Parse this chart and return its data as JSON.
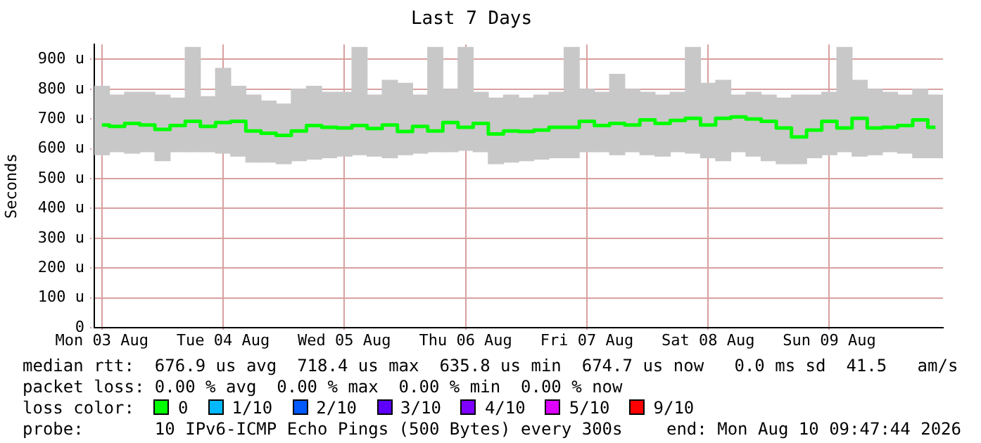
{
  "chart_data": {
    "type": "step",
    "title": "Last 7 Days",
    "ylabel": "Seconds",
    "categories": [
      "Mon 03 Aug",
      null,
      null,
      null,
      null,
      null,
      null,
      null,
      "Tue 04 Aug",
      null,
      null,
      null,
      null,
      null,
      null,
      null,
      "Wed 05 Aug",
      null,
      null,
      null,
      null,
      null,
      null,
      null,
      "Thu 06 Aug",
      null,
      null,
      null,
      null,
      null,
      null,
      null,
      "Fri 07 Aug",
      null,
      null,
      null,
      null,
      null,
      null,
      null,
      "Sat 08 Aug",
      null,
      null,
      null,
      null,
      null,
      null,
      null,
      "Sun 09 Aug",
      null,
      null,
      null,
      null,
      null,
      null,
      null
    ],
    "series": [
      {
        "type": "bar",
        "color": "#c8c8c8",
        "base": [
          580,
          590,
          585,
          590,
          560,
          590,
          590,
          590,
          585,
          575,
          555,
          555,
          550,
          560,
          565,
          570,
          575,
          580,
          575,
          570,
          580,
          585,
          590,
          590,
          595,
          590,
          550,
          555,
          560,
          565,
          570,
          570,
          590,
          590,
          580,
          590,
          580,
          575,
          590,
          585,
          570,
          560,
          590,
          575,
          560,
          550,
          550,
          570,
          580,
          590,
          575,
          580,
          590,
          585,
          570,
          570
        ],
        "values": [
          230,
          190,
          205,
          200,
          220,
          180,
          350,
          185,
          285,
          235,
          225,
          205,
          200,
          240,
          245,
          220,
          215,
          360,
          205,
          260,
          240,
          195,
          350,
          210,
          345,
          200,
          220,
          225,
          210,
          215,
          220,
          370,
          210,
          200,
          270,
          210,
          210,
          205,
          200,
          355,
          250,
          270,
          190,
          215,
          220,
          220,
          230,
          210,
          210,
          350,
          255,
          220,
          200,
          195,
          230,
          210
        ]
      },
      {
        "color": "#00ff00",
        "values": [
          680,
          675,
          685,
          680,
          665,
          678,
          692,
          675,
          688,
          692,
          660,
          652,
          645,
          660,
          678,
          672,
          670,
          678,
          668,
          680,
          658,
          675,
          660,
          688,
          672,
          685,
          650,
          660,
          658,
          663,
          672,
          672,
          692,
          678,
          685,
          680,
          697,
          685,
          695,
          702,
          680,
          702,
          707,
          700,
          692,
          670,
          640,
          663,
          692,
          670,
          702,
          670,
          672,
          678,
          697,
          672
        ]
      }
    ],
    "ylim": [
      0,
      950
    ],
    "yticks": [
      0,
      {
        "value": 100,
        "label": "100 u"
      },
      {
        "value": 200,
        "label": "200 u"
      },
      {
        "value": 300,
        "label": "300 u"
      },
      {
        "value": 400,
        "label": "400 u"
      },
      {
        "value": 500,
        "label": "500 u"
      },
      {
        "value": 600,
        "label": "600 u"
      },
      {
        "value": 700,
        "label": "700 u"
      },
      {
        "value": 800,
        "label": "800 u"
      },
      {
        "value": 900,
        "label": "900 u"
      }
    ],
    "grid": true,
    "legend": false,
    "marker": "none",
    "line_style": "solid",
    "annotations": [
      "median rtt:  676.9 us avg  718.4 us max  635.8 us min  674.7 us now   0.0 ms sd  41.5   am/s",
      "packet loss: 0.00 % avg  0.00 % max  0.00 % min  0.00 % now",
      "loss color:",
      "0",
      "1/10",
      "2/10",
      "3/10",
      "4/10",
      "5/10",
      "9/10",
      "probe:       10 IPv6-ICMP Echo Pings (500 Bytes) every 300s",
      "end: Mon Aug 10 09:47:44 2026"
    ]
  }
}
